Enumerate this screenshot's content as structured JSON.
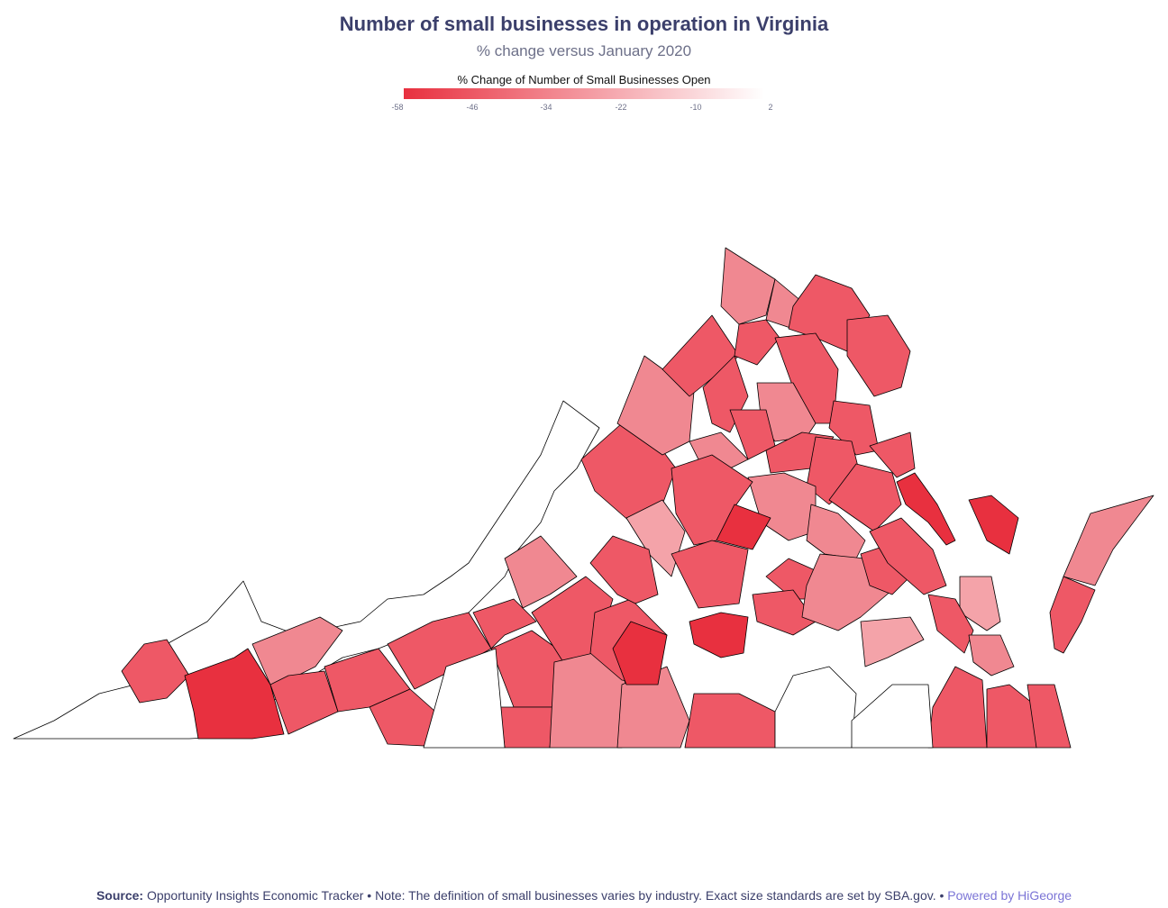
{
  "header": {
    "title": "Number of small businesses in operation in Virginia",
    "subtitle": "% change versus January 2020"
  },
  "legend": {
    "title": "% Change of Number of Small Businesses Open",
    "ticks": [
      "-58",
      "-46",
      "-34",
      "-22",
      "-10",
      "2"
    ],
    "min": -58,
    "max": 2,
    "color_low": "#e8303f",
    "color_high": "#ffffff"
  },
  "map": {
    "region": "Virginia",
    "no_data_color": "#ffffff",
    "border_color": "#000000"
  },
  "footer": {
    "source_label": "Source:",
    "source_text": "Opportunity Insights Economic Tracker • Note: The definition of small businesses varies by industry. Exact size standards are set by SBA.gov. •",
    "powered_by": "Powered by HiGeorge"
  }
}
